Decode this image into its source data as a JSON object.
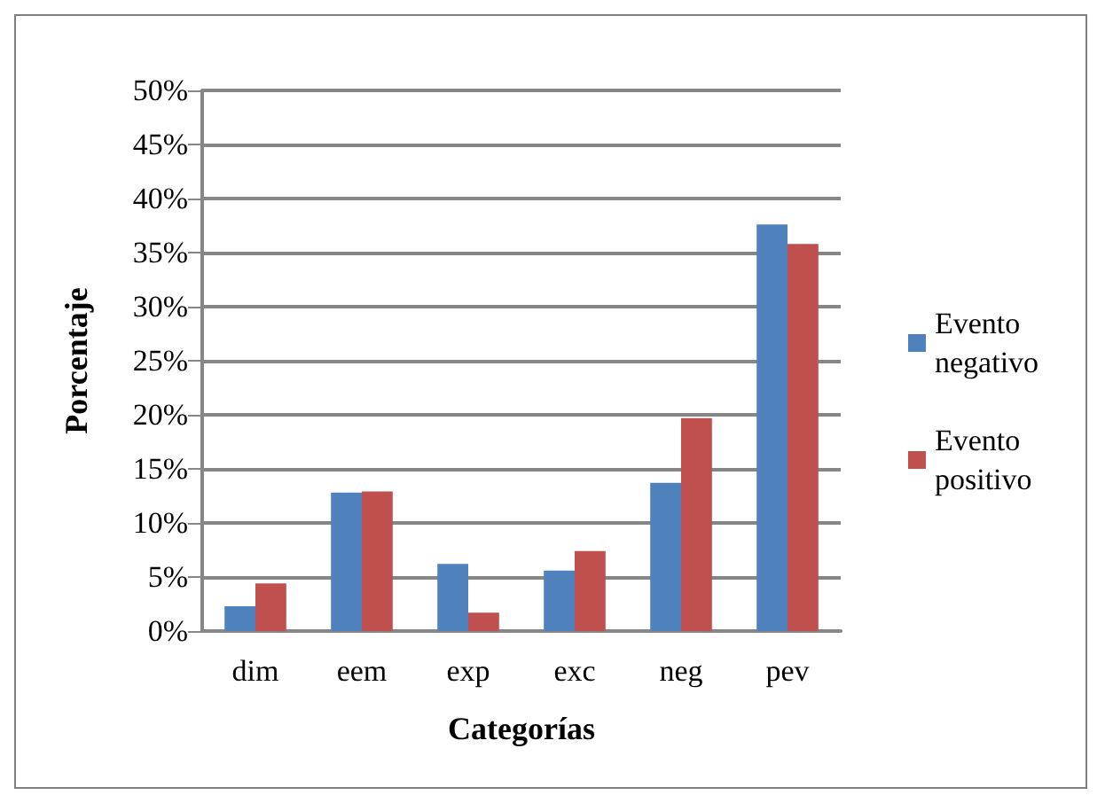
{
  "chart_data": {
    "type": "bar",
    "xlabel": "Categorías",
    "ylabel": "Porcentaje",
    "categories": [
      "dim",
      "eem",
      "exp",
      "exc",
      "neg",
      "pev"
    ],
    "series": [
      {
        "name": "Evento negativo",
        "color": "#4f81bd",
        "values": [
          2.3,
          12.8,
          6.2,
          5.6,
          13.7,
          37.6
        ]
      },
      {
        "name": "Evento positivo",
        "color": "#c0504d",
        "values": [
          4.4,
          12.9,
          1.7,
          7.4,
          19.7,
          35.8
        ]
      }
    ],
    "ylim": [
      0,
      50
    ],
    "yticks": [
      {
        "value": 0,
        "label": "0%"
      },
      {
        "value": 5,
        "label": "5%"
      },
      {
        "value": 10,
        "label": "10%"
      },
      {
        "value": 15,
        "label": "15%"
      },
      {
        "value": 20,
        "label": "20%"
      },
      {
        "value": 25,
        "label": "25%"
      },
      {
        "value": 30,
        "label": "30%"
      },
      {
        "value": 35,
        "label": "35%"
      },
      {
        "value": 40,
        "label": "40%"
      },
      {
        "value": 45,
        "label": "45%"
      },
      {
        "value": 50,
        "label": "50%"
      }
    ],
    "grid": "y",
    "legend": "right"
  }
}
